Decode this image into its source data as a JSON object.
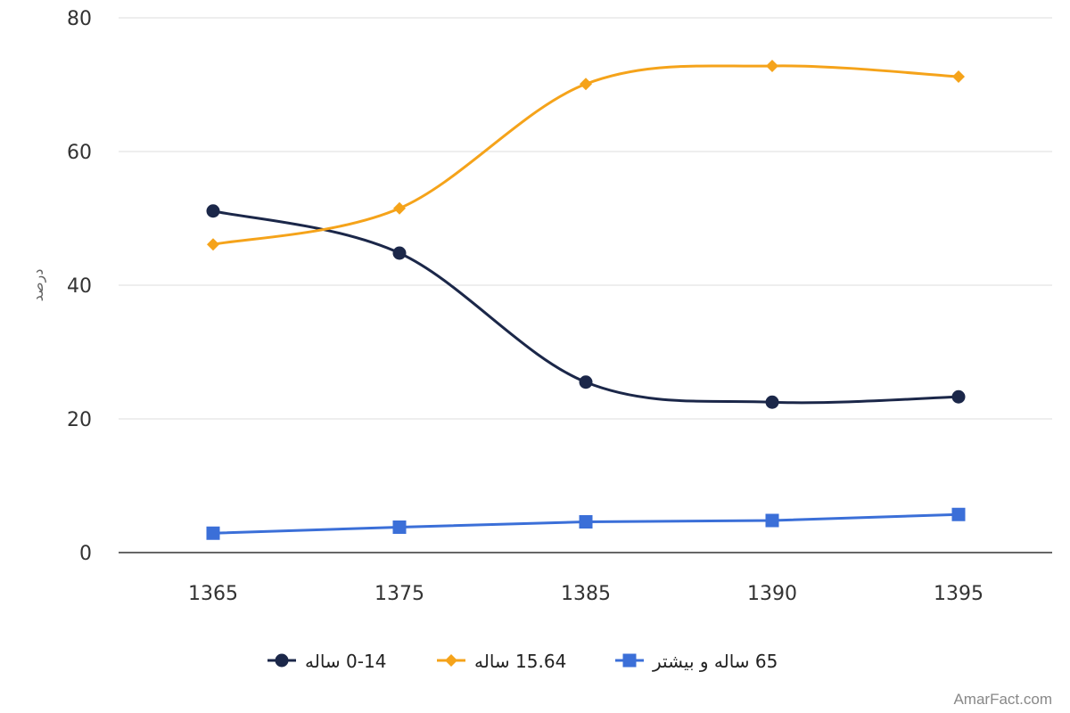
{
  "chart_data": {
    "type": "line",
    "title": "",
    "xlabel": "",
    "ylabel": "درصد",
    "x": [
      "1365",
      "1375",
      "1385",
      "1390",
      "1395"
    ],
    "ylim": [
      0,
      80
    ],
    "yticks": [
      "0",
      "20",
      "40",
      "60",
      "80"
    ],
    "grid": true,
    "legend_position": "bottom",
    "series": [
      {
        "name": "0-14 ساله",
        "values": [
          51.1,
          44.8,
          25.5,
          22.5,
          23.3
        ],
        "color": "#1b2749",
        "marker": "circle"
      },
      {
        "name": "15.64 ساله",
        "values": [
          46.1,
          51.5,
          70.1,
          72.8,
          71.2
        ],
        "color": "#f5a31a",
        "marker": "diamond"
      },
      {
        "name": "65 ساله و بیشتر",
        "values": [
          2.9,
          3.8,
          4.6,
          4.8,
          5.7
        ],
        "color": "#3b6fd8",
        "marker": "square"
      }
    ]
  },
  "watermark": "AmarFact.com"
}
